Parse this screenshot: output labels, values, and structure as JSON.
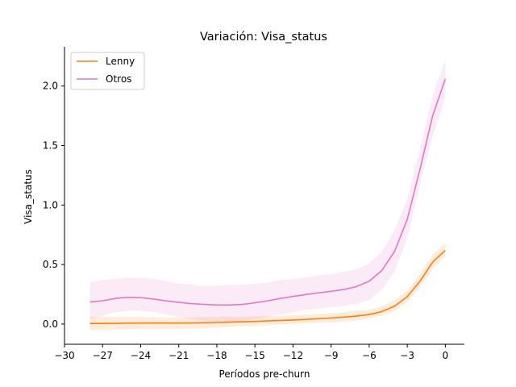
{
  "chart_data": {
    "type": "line",
    "title": "Variación: Visa_status",
    "xlabel": "Períodos pre-churn",
    "ylabel": "Visa_status",
    "xlim": [
      -30,
      1.5
    ],
    "ylim": [
      -0.17,
      2.33
    ],
    "xticks": [
      -30,
      -27,
      -24,
      -21,
      -18,
      -15,
      -12,
      -9,
      -6,
      -3,
      0
    ],
    "xtick_labels": [
      "−30",
      "−27",
      "−24",
      "−21",
      "−18",
      "−15",
      "−12",
      "−9",
      "−6",
      "−3",
      "0"
    ],
    "yticks": [
      0.0,
      0.5,
      1.0,
      1.5,
      2.0
    ],
    "ytick_labels": [
      "0.0",
      "0.5",
      "1.0",
      "1.5",
      "2.0"
    ],
    "legend_position": "top-left",
    "grid": false,
    "x": [
      -28,
      -27,
      -26,
      -25,
      -24,
      -23,
      -22,
      -21,
      -20,
      -19,
      -18,
      -17,
      -16,
      -15,
      -14,
      -13,
      -12,
      -11,
      -10,
      -9,
      -8,
      -7,
      -6,
      -5,
      -4,
      -3,
      -2,
      -1,
      0
    ],
    "series": [
      {
        "name": "Lenny",
        "color": "#ff7f0e",
        "values": [
          0.005,
          0.005,
          0.006,
          0.007,
          0.008,
          0.008,
          0.008,
          0.008,
          0.009,
          0.011,
          0.013,
          0.016,
          0.019,
          0.022,
          0.026,
          0.03,
          0.034,
          0.039,
          0.045,
          0.051,
          0.058,
          0.067,
          0.08,
          0.105,
          0.15,
          0.23,
          0.36,
          0.52,
          0.62
        ],
        "lower": [
          -0.05,
          -0.05,
          -0.045,
          -0.045,
          -0.04,
          -0.04,
          -0.04,
          -0.04,
          -0.04,
          -0.035,
          -0.03,
          -0.025,
          -0.02,
          -0.015,
          -0.01,
          -0.005,
          0.0,
          0.005,
          0.01,
          0.015,
          0.02,
          0.03,
          0.045,
          0.07,
          0.11,
          0.18,
          0.31,
          0.46,
          0.57
        ],
        "upper": [
          0.06,
          0.06,
          0.06,
          0.06,
          0.06,
          0.055,
          0.055,
          0.055,
          0.055,
          0.06,
          0.06,
          0.06,
          0.06,
          0.065,
          0.065,
          0.07,
          0.075,
          0.08,
          0.085,
          0.09,
          0.1,
          0.11,
          0.12,
          0.15,
          0.2,
          0.28,
          0.42,
          0.58,
          0.68
        ]
      },
      {
        "name": "Otros",
        "color": "#e377c2",
        "values": [
          0.185,
          0.195,
          0.215,
          0.225,
          0.222,
          0.21,
          0.195,
          0.182,
          0.172,
          0.165,
          0.16,
          0.16,
          0.165,
          0.178,
          0.195,
          0.215,
          0.232,
          0.248,
          0.262,
          0.275,
          0.29,
          0.315,
          0.36,
          0.45,
          0.61,
          0.88,
          1.3,
          1.75,
          2.06
        ],
        "lower": [
          0.04,
          0.07,
          0.1,
          0.11,
          0.11,
          0.1,
          0.08,
          0.06,
          0.04,
          0.03,
          0.02,
          0.02,
          0.02,
          0.04,
          0.06,
          0.08,
          0.1,
          0.12,
          0.13,
          0.14,
          0.15,
          0.17,
          0.2,
          0.29,
          0.44,
          0.72,
          1.17,
          1.58,
          1.9
        ],
        "upper": [
          0.35,
          0.37,
          0.38,
          0.39,
          0.39,
          0.38,
          0.36,
          0.34,
          0.33,
          0.32,
          0.32,
          0.33,
          0.33,
          0.34,
          0.35,
          0.37,
          0.38,
          0.39,
          0.41,
          0.42,
          0.44,
          0.46,
          0.51,
          0.61,
          0.79,
          1.05,
          1.47,
          1.92,
          2.22
        ]
      }
    ]
  }
}
